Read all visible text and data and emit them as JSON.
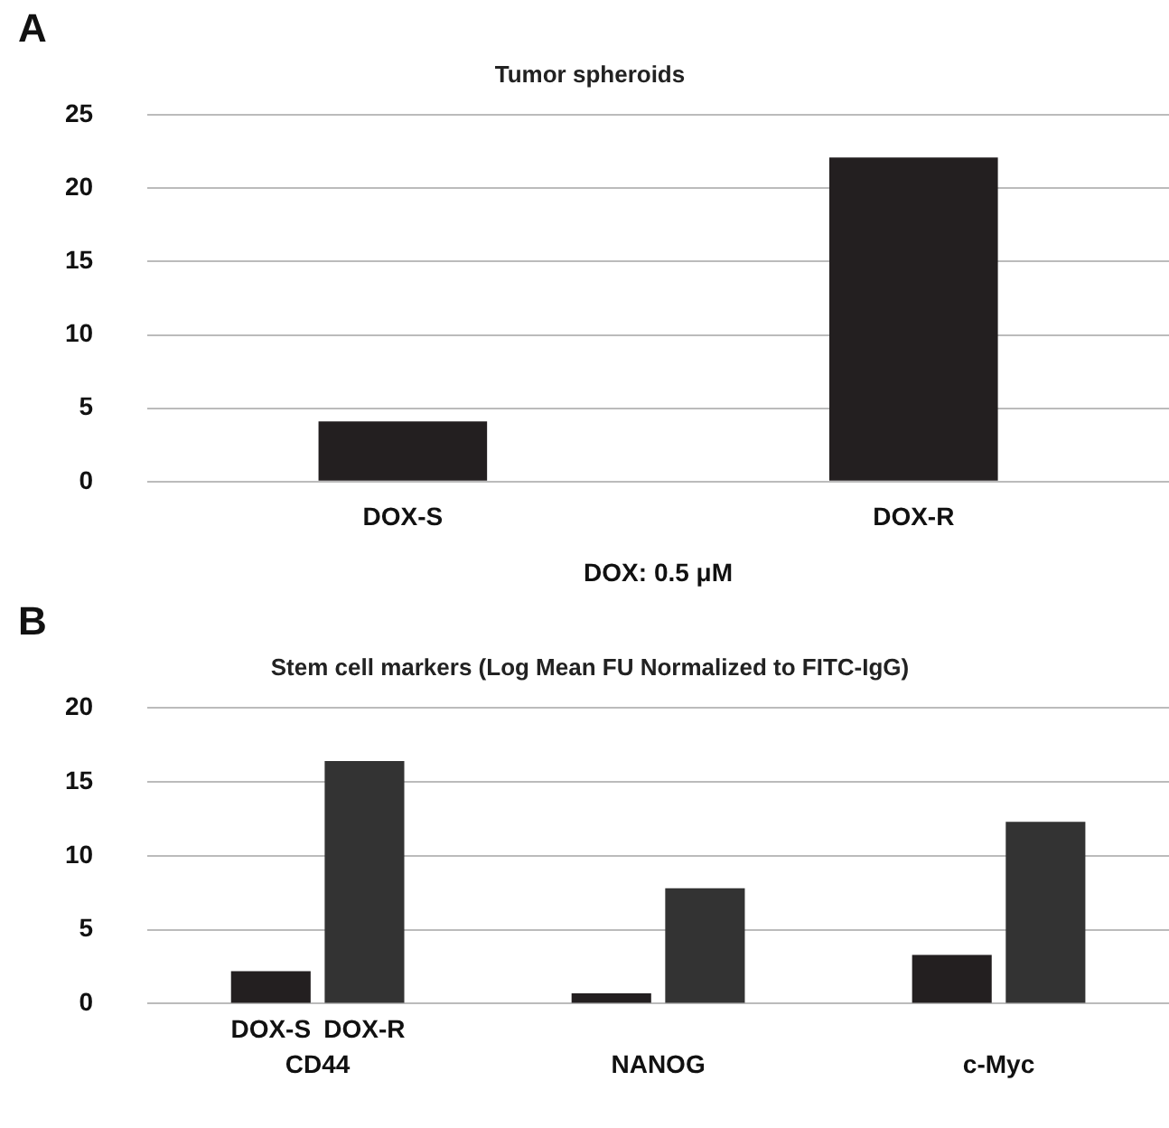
{
  "chart_data": [
    {
      "type": "bar",
      "title": "Tumor spheroids",
      "annotations": [
        "A"
      ],
      "xlabel": "DOX: 0.5 μM",
      "categories": [
        "DOX-S",
        "DOX-R"
      ],
      "values": [
        4.1,
        22.1
      ],
      "color": "#231f20",
      "ylim": [
        0,
        25
      ],
      "yticks": [
        0,
        5,
        10,
        15,
        20,
        25
      ],
      "grid": "y",
      "legend": false
    },
    {
      "type": "bar",
      "title": "Stem cell markers (Log Mean FU Normalized to FITC-IgG)",
      "annotations": [
        "B"
      ],
      "categories": [
        "CD44",
        "NANOG",
        "c-Myc"
      ],
      "series": [
        {
          "name": "DOX-S",
          "color": "#231f20",
          "values": [
            2.2,
            0.7,
            3.3
          ]
        },
        {
          "name": "DOX-R",
          "color": "#333333",
          "values": [
            16.4,
            7.8,
            12.3
          ]
        }
      ],
      "ylim": [
        0,
        20
      ],
      "yticks": [
        0,
        5,
        10,
        15,
        20
      ],
      "grid": "y",
      "legend": false
    }
  ]
}
